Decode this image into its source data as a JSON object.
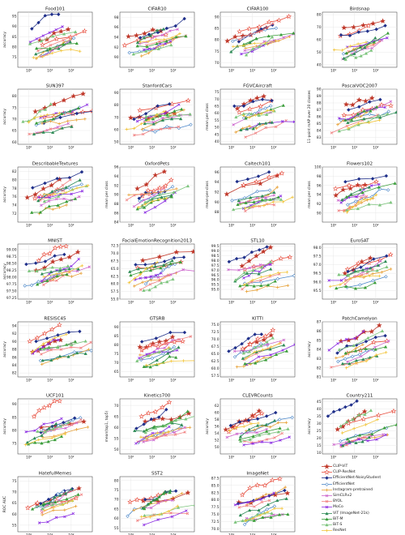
{
  "figure": {
    "y_label_default": "accuracy",
    "x_label": "GFLOPs/image"
  },
  "legend": [
    {
      "name": "CLIP-ViT",
      "color": "#c0392b",
      "marker": "star"
    },
    {
      "name": "CLIP-ResNet",
      "color": "#e74c3c",
      "marker": "star-open"
    },
    {
      "name": "EfficientNet-NoisyStudent",
      "color": "#1f2f8a",
      "marker": "diamond"
    },
    {
      "name": "EfficientNet",
      "color": "#4a86c8",
      "marker": "diamond-open"
    },
    {
      "name": "Instagram-pretrained",
      "color": "#e8a33b",
      "marker": "plus"
    },
    {
      "name": "SimCLRv2",
      "color": "#cc66cc",
      "marker": "x"
    },
    {
      "name": "BYOL",
      "color": "#f08080",
      "marker": "x"
    },
    {
      "name": "MoCo",
      "color": "#8a2be2",
      "marker": "x"
    },
    {
      "name": "ViT (ImageNet-21k)",
      "color": "#2e8b57",
      "marker": "tri"
    },
    {
      "name": "BiT-M",
      "color": "#3a9d3a",
      "marker": "tri"
    },
    {
      "name": "BiT-S",
      "color": "#7cc47c",
      "marker": "tri"
    },
    {
      "name": "ResNet",
      "color": "#f2c53d",
      "marker": "plus"
    }
  ],
  "chart_data": [
    {
      "type": "line",
      "title": "Food101",
      "ylabel": "accuracy",
      "ylim": [
        70,
        97
      ],
      "yticks": [
        "75",
        "80",
        "85",
        "90",
        "95"
      ],
      "xlim": [
        0.3,
        1000
      ],
      "xticks": [
        "10⁰",
        "10¹",
        "10²"
      ]
    },
    {
      "type": "line",
      "title": "CIFAR10",
      "ylabel": "",
      "ylim": [
        88,
        99
      ],
      "yticks": [
        "90",
        "92",
        "94",
        "96",
        "98"
      ],
      "xlim": [
        0.3,
        1000
      ],
      "xticks": [
        "10⁰",
        "10¹",
        "10²"
      ]
    },
    {
      "type": "line",
      "title": "CIFAR100",
      "ylabel": "",
      "ylim": [
        68,
        92
      ],
      "yticks": [
        "70",
        "75",
        "80",
        "85",
        "90"
      ],
      "xlim": [
        0.3,
        1000
      ],
      "xticks": [
        "10⁰",
        "10¹",
        "10²"
      ]
    },
    {
      "type": "line",
      "title": "Birdsnap",
      "ylabel": "",
      "ylim": [
        38,
        82
      ],
      "yticks": [
        "40",
        "50",
        "60",
        "70",
        "80"
      ],
      "xlim": [
        0.3,
        1000
      ],
      "xticks": [
        "10⁰",
        "10¹",
        "10²"
      ]
    },
    {
      "type": "line",
      "title": "SUN397",
      "ylabel": "accuracy",
      "ylim": [
        59,
        83
      ],
      "yticks": [
        "60",
        "65",
        "70",
        "75",
        "80"
      ],
      "xlim": [
        0.3,
        1000
      ],
      "xticks": [
        "10⁰",
        "10¹",
        "10²"
      ]
    },
    {
      "type": "line",
      "title": "StanfordCars",
      "ylabel": "",
      "ylim": [
        48,
        93
      ],
      "yticks": [
        "50",
        "60",
        "70",
        "80",
        "90"
      ],
      "xlim": [
        0.3,
        1000
      ],
      "xticks": [
        "10⁰",
        "10¹",
        "10²"
      ]
    },
    {
      "type": "line",
      "title": "FGVCAircraft",
      "ylabel": "mean per class",
      "ylim": [
        38,
        77
      ],
      "yticks": [
        "40",
        "45",
        "50",
        "55",
        "60",
        "65",
        "70",
        "75"
      ],
      "xlim": [
        0.3,
        1000
      ],
      "xticks": [
        "10⁰",
        "10¹",
        "10²"
      ]
    },
    {
      "type": "line",
      "title": "PascalVOC2007",
      "ylabel": "11-point mAP over 20 classes",
      "ylim": [
        82,
        90
      ],
      "yticks": [
        "83",
        "84",
        "85",
        "86",
        "87",
        "88",
        "89",
        "90"
      ],
      "xlim": [
        0.3,
        1000
      ],
      "xticks": [
        "10⁰",
        "10¹",
        "10²"
      ]
    },
    {
      "type": "line",
      "title": "DescribableTextures",
      "ylabel": "accuracy",
      "ylim": [
        70,
        83
      ],
      "yticks": [
        "72",
        "74",
        "76",
        "78",
        "80",
        "82"
      ],
      "xlim": [
        0.3,
        1000
      ],
      "xticks": [
        "10⁰",
        "10¹",
        "10²"
      ]
    },
    {
      "type": "line",
      "title": "OxfordPets",
      "ylabel": "mean per class",
      "ylim": [
        84,
        96
      ],
      "yticks": [
        "84",
        "86",
        "88",
        "90",
        "92",
        "94",
        "96"
      ],
      "xlim": [
        0.3,
        1000
      ],
      "xticks": [
        "10⁰",
        "10¹",
        "10²"
      ]
    },
    {
      "type": "line",
      "title": "Caltech101",
      "ylabel": "mean-per-class",
      "ylim": [
        86,
        97
      ],
      "yticks": [
        "88",
        "90",
        "92",
        "94",
        "96"
      ],
      "xlim": [
        0.3,
        1000
      ],
      "xticks": [
        "10⁰",
        "10¹",
        "10²"
      ]
    },
    {
      "type": "line",
      "title": "Flowers102",
      "ylabel": "mean per class",
      "ylim": [
        88,
        100
      ],
      "yticks": [
        "90",
        "92",
        "94",
        "96",
        "98",
        "100"
      ],
      "xlim": [
        0.3,
        1000
      ],
      "xticks": [
        "10⁰",
        "10¹",
        "10²"
      ]
    },
    {
      "type": "line",
      "title": "MNIST",
      "ylabel": "accuracy",
      "ylim": [
        97.2,
        99.2
      ],
      "yticks": [
        "97.25",
        "97.50",
        "97.75",
        "98.00",
        "98.25",
        "98.50",
        "98.75",
        "99.00"
      ],
      "xlim": [
        0.3,
        1000
      ],
      "xticks": [
        "10⁰",
        "10¹",
        "10²"
      ]
    },
    {
      "type": "line",
      "title": "FacialEmotionRecognition2013",
      "ylabel": "",
      "ylim": [
        55,
        73
      ],
      "yticks": [
        "55.0",
        "57.5",
        "60.0",
        "62.5",
        "65.0",
        "67.5",
        "70.0",
        "72.5"
      ],
      "xlim": [
        0.3,
        1000
      ],
      "xticks": [
        "10⁰",
        "10¹",
        "10²"
      ]
    },
    {
      "type": "line",
      "title": "STL10",
      "ylabel": "",
      "ylim": [
        94,
        99.7
      ],
      "yticks": [
        "95.0",
        "95.5",
        "96.0",
        "96.5",
        "97.0",
        "97.5",
        "98.0",
        "98.5",
        "99.0",
        "99.5"
      ],
      "xlim": [
        0.3,
        1000
      ],
      "xticks": [
        "10⁰",
        "10¹",
        "10²"
      ]
    },
    {
      "type": "line",
      "title": "EuroSAT",
      "ylabel": "",
      "ylim": [
        95,
        98.2
      ],
      "yticks": [
        "95.5",
        "96.0",
        "96.5",
        "97.0",
        "97.5",
        "98.0"
      ],
      "xlim": [
        0.3,
        1000
      ],
      "xticks": [
        "10⁰",
        "10¹",
        "10²"
      ]
    },
    {
      "type": "line",
      "title": "RESISC45",
      "ylabel": "accuracy",
      "ylim": [
        81,
        95
      ],
      "yticks": [
        "82",
        "84",
        "86",
        "88",
        "90",
        "92",
        "94"
      ],
      "xlim": [
        0.3,
        1000
      ],
      "xticks": [
        "10⁰",
        "10¹",
        "10²"
      ]
    },
    {
      "type": "line",
      "title": "GTSRB",
      "ylabel": "",
      "ylim": [
        62,
        93
      ],
      "yticks": [
        "65",
        "70",
        "75",
        "80",
        "85",
        "90"
      ],
      "xlim": [
        0.3,
        1000
      ],
      "xticks": [
        "10⁰",
        "10¹",
        "10²"
      ]
    },
    {
      "type": "line",
      "title": "KITTI",
      "ylabel": "",
      "ylim": [
        57,
        76
      ],
      "yticks": [
        "57.5",
        "60.0",
        "62.5",
        "65.0",
        "67.5",
        "70.0",
        "72.5",
        "75.0"
      ],
      "xlim": [
        0.3,
        1000
      ],
      "xticks": [
        "10⁰",
        "10¹",
        "10²"
      ]
    },
    {
      "type": "line",
      "title": "PatchCamelyon",
      "ylabel": "accuracy",
      "ylim": [
        81,
        87
      ],
      "yticks": [
        "81",
        "82",
        "83",
        "84",
        "85",
        "86",
        "87"
      ],
      "xlim": [
        0.3,
        1000
      ],
      "xticks": [
        "10⁰",
        "10¹",
        "10²"
      ]
    },
    {
      "type": "line",
      "title": "UCF101",
      "ylabel": "accuracy",
      "ylim": [
        71,
        92
      ],
      "yticks": [
        "75",
        "80",
        "85",
        "90"
      ],
      "xlim": [
        0.3,
        1000
      ],
      "xticks": [
        "10⁰",
        "10¹",
        "10²"
      ]
    },
    {
      "type": "line",
      "title": "Kinetics700",
      "ylabel": "mean(top1, top5)",
      "ylim": [
        48,
        73
      ],
      "yticks": [
        "50",
        "55",
        "60",
        "65",
        "70"
      ],
      "xlim": [
        0.3,
        1000
      ],
      "xticks": [
        "10⁰",
        "10¹",
        "10²"
      ]
    },
    {
      "type": "line",
      "title": "CLEVRCounts",
      "ylabel": "accuracy",
      "ylim": [
        48,
        64
      ],
      "yticks": [
        "50",
        "52",
        "54",
        "56",
        "58",
        "60",
        "62"
      ],
      "xlim": [
        0.3,
        1000
      ],
      "xticks": [
        "10⁰",
        "10¹",
        "10²"
      ]
    },
    {
      "type": "line",
      "title": "Country211",
      "ylabel": "accuracy",
      "ylim": [
        9,
        47
      ],
      "yticks": [
        "10",
        "15",
        "20",
        "25",
        "30",
        "35",
        "40",
        "45"
      ],
      "xlim": [
        0.3,
        1000
      ],
      "xticks": [
        "10⁰",
        "10¹",
        "10²"
      ]
    },
    {
      "type": "line",
      "title": "HatefulMemes",
      "ylabel": "ROC AUC",
      "ylim": [
        52,
        77
      ],
      "yticks": [
        "55",
        "60",
        "65",
        "70",
        "75"
      ],
      "xlim": [
        0.3,
        1000
      ],
      "xticks": [
        "10⁰",
        "10¹",
        "10²"
      ],
      "xlabel": "GFLOPs/image"
    },
    {
      "type": "line",
      "title": "SST2",
      "ylabel": "",
      "ylim": [
        53,
        82
      ],
      "yticks": [
        "55",
        "60",
        "65",
        "70",
        "75",
        "80"
      ],
      "xlim": [
        0.3,
        1000
      ],
      "xticks": [
        "10⁰",
        "10¹",
        "10²"
      ],
      "xlabel": "GFLOPs/image"
    },
    {
      "type": "line",
      "title": "ImageNet",
      "ylabel": "",
      "ylim": [
        69,
        88
      ],
      "yticks": [
        "70.0",
        "72.5",
        "75.0",
        "77.5",
        "80.0",
        "82.5",
        "85.0",
        "87.5"
      ],
      "xlim": [
        0.3,
        1000
      ],
      "xticks": [
        "10⁰",
        "10¹",
        "10²"
      ],
      "xlabel": "GFLOPs/image"
    }
  ]
}
